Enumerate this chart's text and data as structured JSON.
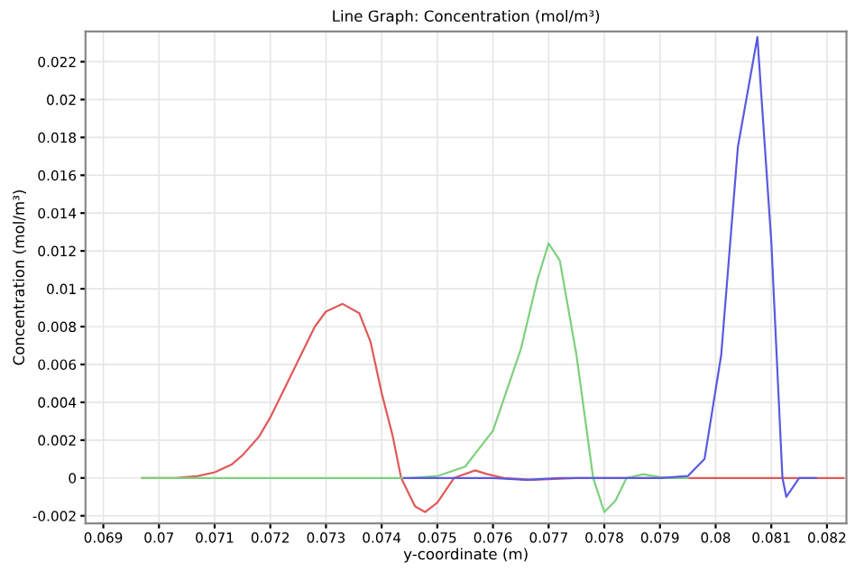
{
  "chart_data": {
    "type": "line",
    "title": "Line Graph: Concentration (mol/m³)",
    "xlabel": "y-coordinate (m)",
    "ylabel": "Concentration (mol/m³)",
    "xlim": [
      0.06868,
      0.08235
    ],
    "ylim": [
      -0.0024,
      0.0236
    ],
    "xticks": [
      0.069,
      0.07,
      0.071,
      0.072,
      0.073,
      0.074,
      0.075,
      0.076,
      0.077,
      0.078,
      0.079,
      0.08,
      0.081,
      0.082
    ],
    "yticks": [
      -0.002,
      0,
      0.002,
      0.004,
      0.006,
      0.008,
      0.01,
      0.012,
      0.014,
      0.016,
      0.018,
      0.02,
      0.022
    ],
    "grid": true,
    "marker": "none",
    "line_style": "solid",
    "series": [
      {
        "color": "#e05a5a",
        "x": [
          0.0697,
          0.0703,
          0.0707,
          0.071,
          0.0713,
          0.0715,
          0.0718,
          0.072,
          0.0723,
          0.0725,
          0.0728,
          0.073,
          0.0733,
          0.0736,
          0.0738,
          0.074,
          0.0742,
          0.07435,
          0.0746,
          0.07478,
          0.075,
          0.0753,
          0.07568,
          0.0759,
          0.0762,
          0.0767,
          0.0775,
          0.079,
          0.0823
        ],
        "values": [
          0,
          0,
          0.0001,
          0.0003,
          0.0007,
          0.0012,
          0.0022,
          0.0032,
          0.005,
          0.0062,
          0.008,
          0.0088,
          0.0092,
          0.0087,
          0.0072,
          0.0045,
          0.0022,
          0,
          -0.0015,
          -0.0018,
          -0.0013,
          0,
          0.0004,
          0.0002,
          0,
          -0.0001,
          0,
          0,
          0
        ]
      },
      {
        "color": "#7fcf7f",
        "x": [
          0.0697,
          0.0745,
          0.075,
          0.0755,
          0.076,
          0.0765,
          0.0768,
          0.077,
          0.0772,
          0.0775,
          0.0778,
          0.078,
          0.0782,
          0.0784,
          0.0787,
          0.0791,
          0.0795
        ],
        "values": [
          0,
          0,
          0.0001,
          0.0006,
          0.0025,
          0.0068,
          0.0105,
          0.0124,
          0.0115,
          0.0065,
          0,
          -0.0018,
          -0.0012,
          0,
          0.0002,
          0,
          0
        ]
      },
      {
        "color": "#5a5ae0",
        "x": [
          0.0744,
          0.076,
          0.0766,
          0.0772,
          0.079,
          0.0795,
          0.0798,
          0.0801,
          0.0804,
          0.08075,
          0.081,
          0.0812,
          0.08127,
          0.0815,
          0.0818
        ],
        "values": [
          0,
          0,
          -0.0001,
          0,
          0,
          0.0001,
          0.001,
          0.0065,
          0.0175,
          0.0233,
          0.0125,
          0,
          -0.001,
          0,
          0
        ]
      }
    ]
  }
}
